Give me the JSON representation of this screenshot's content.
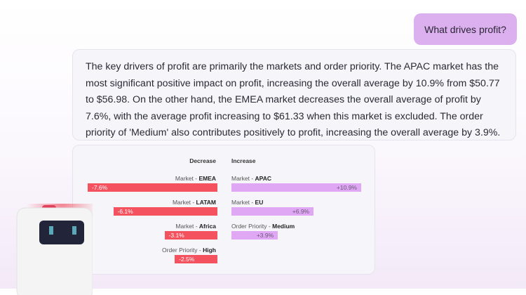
{
  "user_message": "What drives profit?",
  "answer": "The key drivers of profit are primarily the markets and order priority. The APAC market has the most significant positive impact on profit, increasing the overall average by 10.9% from $50.77 to $56.98. On the other hand, the EMEA market decreases the overall average of profit by 7.6%, with the average profit increasing to $61.33 when this market is excluded. The order priority of 'Medium' also contributes positively to profit, increasing the overall average by 3.9%.",
  "chart_data": {
    "type": "bar",
    "decrease_header": "Decrease",
    "increase_header": "Increase",
    "decrease": [
      {
        "dim": "Market",
        "value_label": "EMEA",
        "value": -7.6,
        "text": "-7.6%"
      },
      {
        "dim": "Market",
        "value_label": "LATAM",
        "value": -6.1,
        "text": "-6.1%"
      },
      {
        "dim": "Market",
        "value_label": "Africa",
        "value": -3.1,
        "text": "-3.1%"
      },
      {
        "dim": "Order Priority",
        "value_label": "High",
        "value": -2.5,
        "text": "-2.5%"
      }
    ],
    "increase": [
      {
        "dim": "Market",
        "value_label": "APAC",
        "value": 10.9,
        "text": "+10.9%"
      },
      {
        "dim": "Market",
        "value_label": "EU",
        "value": 6.9,
        "text": "+6.9%"
      },
      {
        "dim": "Order Priority",
        "value_label": "Medium",
        "value": 3.9,
        "text": "+3.9%"
      }
    ],
    "colors": {
      "decrease": "#f4525f",
      "increase": "#e0a7f4"
    }
  }
}
